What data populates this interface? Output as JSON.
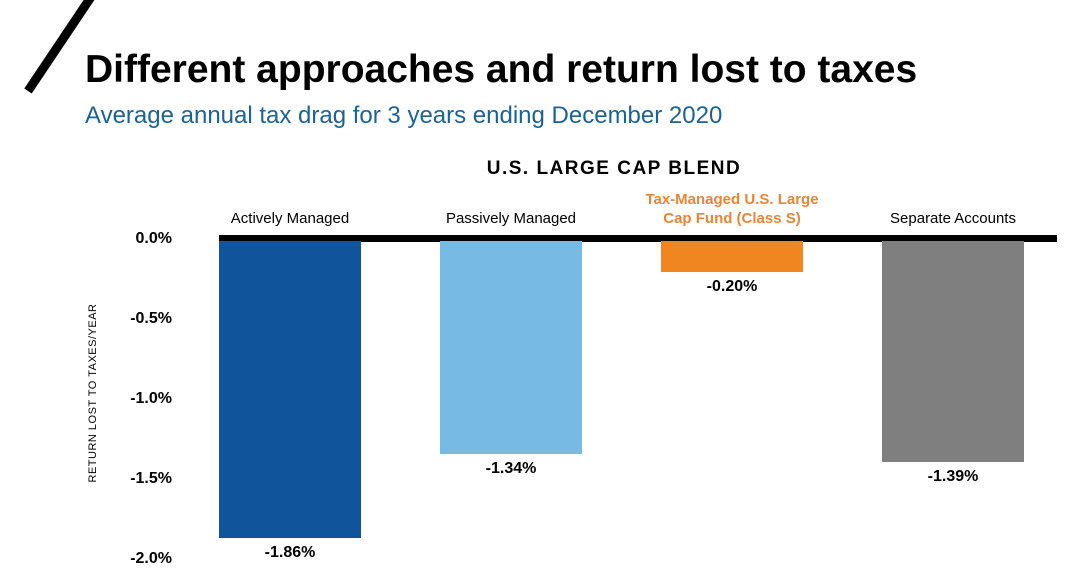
{
  "header": {
    "title": "Different approaches and return lost to taxes",
    "subtitle": "Average annual tax drag for 3 years ending December 2020"
  },
  "colors": {
    "subtitle_blue": "#1A6399",
    "highlight_orange": "#ED8433",
    "axis_black": "#000000"
  },
  "chart_data": {
    "type": "bar",
    "title": "U.S. LARGE CAP BLEND",
    "xlabel": "",
    "ylabel": "RETURN LOST TO TAXES/YEAR",
    "ylim": [
      -2.0,
      0.0
    ],
    "grid": false,
    "legend": false,
    "yticks": [
      0.0,
      -0.5,
      -1.0,
      -1.5,
      -2.0
    ],
    "ytick_labels": [
      "0.0%",
      "-0.5%",
      "-1.0%",
      "-1.5%",
      "-2.0%"
    ],
    "categories": [
      "Actively Managed",
      "Passively Managed",
      "Tax-Managed U.S. Large Cap Fund (Class S)",
      "Separate Accounts"
    ],
    "category_label_lines": [
      [
        "Actively Managed"
      ],
      [
        "Passively Managed"
      ],
      [
        "Tax-Managed U.S. Large",
        "Cap Fund (Class S)"
      ],
      [
        "Separate Accounts"
      ]
    ],
    "category_highlight": [
      false,
      false,
      true,
      false
    ],
    "values": [
      -1.86,
      -1.34,
      -0.2,
      -1.39
    ],
    "value_labels": [
      "-1.86%",
      "-1.34%",
      "-0.20%",
      "-1.39%"
    ],
    "bar_colors": [
      "#10549B",
      "#77BBE5",
      "#F0861F",
      "#7F7F7F"
    ],
    "category_label_colors": [
      "#000000",
      "#000000",
      "#ED8433",
      "#000000"
    ]
  }
}
